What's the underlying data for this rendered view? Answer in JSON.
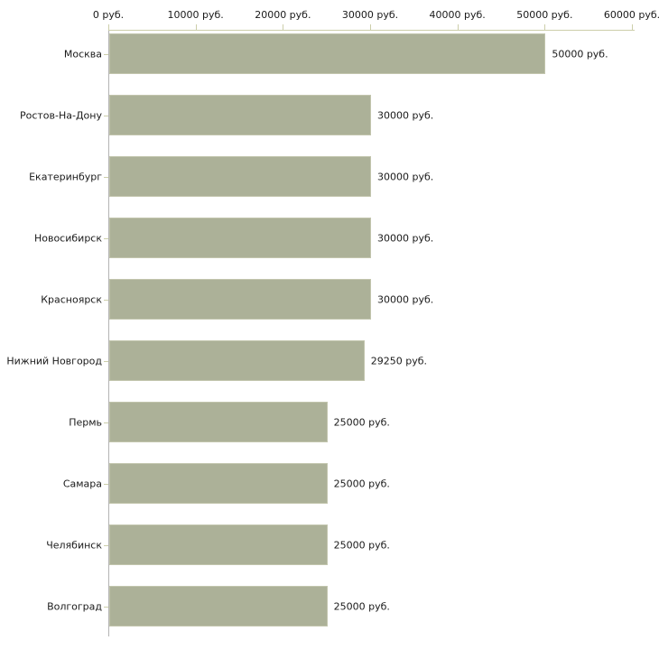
{
  "chart_data": {
    "type": "bar",
    "orientation": "horizontal",
    "title": "",
    "xlabel": "",
    "ylabel": "",
    "xlim": [
      0,
      60000
    ],
    "grid": false,
    "legend": false,
    "categories": [
      "Москва",
      "Ростов-На-Дону",
      "Екатеринбург",
      "Новосибирск",
      "Красноярск",
      "Нижний Новгород",
      "Пермь",
      "Самара",
      "Челябинск",
      "Волгоград"
    ],
    "values": [
      50000,
      30000,
      30000,
      30000,
      30000,
      29250,
      25000,
      25000,
      25000,
      25000
    ],
    "value_labels": [
      "50000 руб.",
      "30000 руб.",
      "30000 руб.",
      "30000 руб.",
      "30000 руб.",
      "29250 руб.",
      "25000 руб.",
      "25000 руб.",
      "25000 руб.",
      "25000 руб."
    ],
    "x_tick_values": [
      0,
      10000,
      20000,
      30000,
      40000,
      50000,
      60000
    ],
    "x_tick_labels": [
      "0 руб.",
      "10000 руб.",
      "20000 руб.",
      "30000 руб.",
      "40000 руб.",
      "50000 руб.",
      "60000 руб."
    ],
    "colors": {
      "bar_fill": "#acb198",
      "bar_border": "#c2c5ad",
      "axis_tick": "#ccceaa",
      "baseline": "#b3b3b3",
      "text": "#1a1a1a",
      "background": "#ffffff"
    }
  }
}
